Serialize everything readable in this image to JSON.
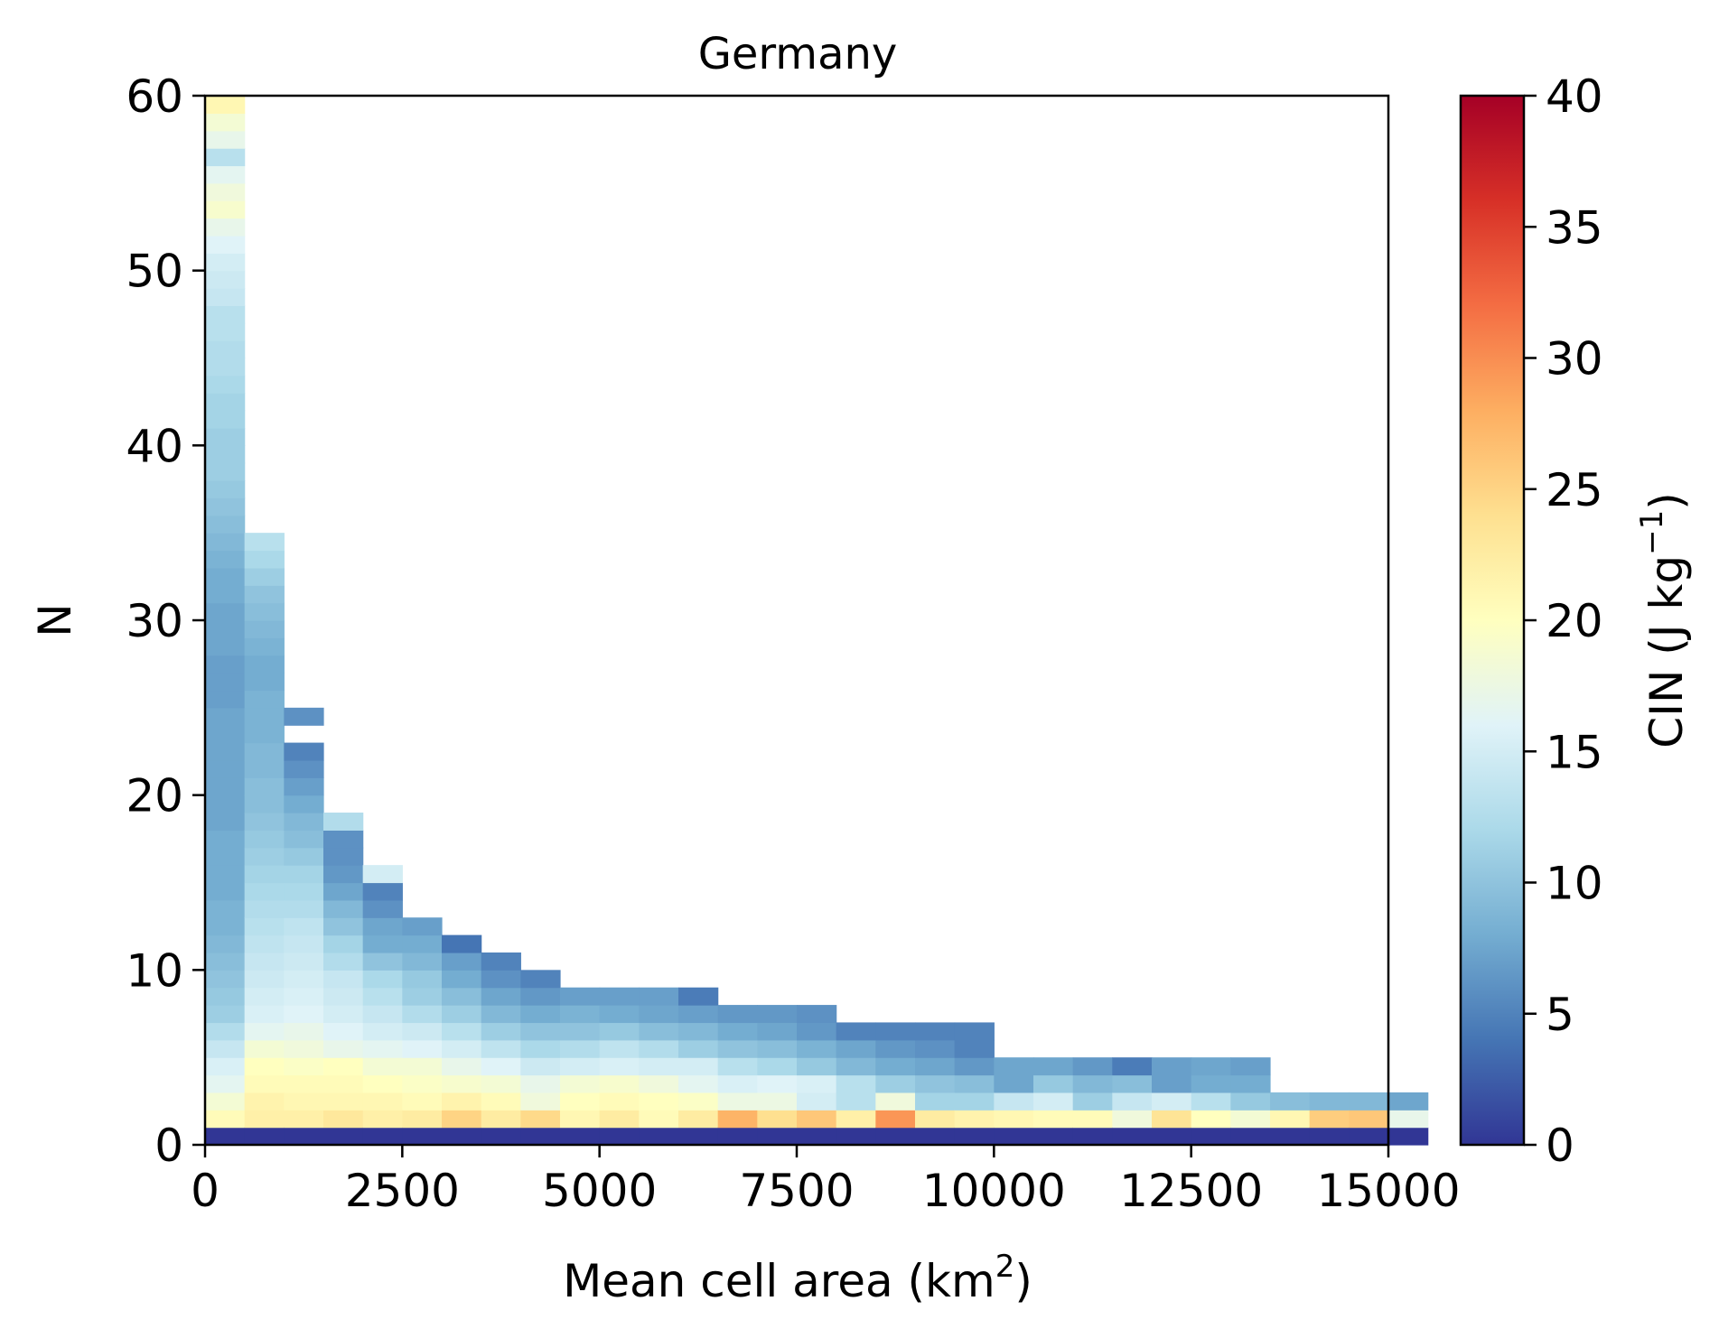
{
  "chart_data": {
    "type": "heatmap",
    "title": "Germany",
    "xlabel": {
      "text": "Mean cell area (km",
      "sup": "2",
      "suffix": ")"
    },
    "ylabel": "N",
    "xlim": [
      0,
      15000
    ],
    "ylim": [
      0,
      60
    ],
    "x_ticks": [
      "0",
      "2500",
      "5000",
      "7500",
      "10000",
      "12500",
      "15000"
    ],
    "y_ticks": [
      "0",
      "10",
      "20",
      "30",
      "40",
      "50",
      "60"
    ],
    "bin_width_x": 500,
    "bin_height_y": 1,
    "grid": false,
    "colorbar": {
      "label": {
        "text": "CIN (J kg",
        "sup": "−1",
        "suffix": ")"
      },
      "range": [
        0,
        40
      ],
      "ticks": [
        "0",
        "5",
        "10",
        "15",
        "20",
        "25",
        "30",
        "35",
        "40"
      ],
      "colormap": "RdYlBu_r",
      "colors": [
        "#313695",
        "#4575b4",
        "#74add1",
        "#abd9e9",
        "#e0f3f8",
        "#ffffbf",
        "#fee090",
        "#fdae61",
        "#f46d43",
        "#d73027",
        "#a50026"
      ]
    },
    "columns": [
      {
        "x_bin": 0,
        "values": [
          0,
          20.5,
          18.5,
          16.5,
          15.5,
          14,
          12.5,
          11,
          10.5,
          10,
          9.5,
          9,
          8.5,
          8.5,
          8,
          8,
          8,
          8,
          7.5,
          7.5,
          7.5,
          7.5,
          7.5,
          7.5,
          7.5,
          7,
          7,
          7,
          7.5,
          7.5,
          7.5,
          8,
          8,
          8.5,
          9,
          9.5,
          10,
          10.5,
          11,
          11,
          11,
          11.5,
          11.5,
          12,
          12.5,
          12.5,
          13,
          13,
          14,
          14.5,
          15,
          16,
          17,
          19,
          18,
          16.5,
          13,
          17,
          18.5,
          21
        ]
      },
      {
        "x_bin": 1,
        "values": [
          0,
          22,
          21.5,
          20.5,
          20,
          18.5,
          16.5,
          15.5,
          15,
          14.5,
          14,
          13.5,
          13,
          12.5,
          12,
          11.5,
          11,
          10.5,
          10,
          9.5,
          9.5,
          9,
          9,
          8.5,
          8.5,
          8.5,
          8,
          8,
          8.5,
          9,
          9.5,
          10,
          11,
          12,
          13
        ]
      },
      {
        "x_bin": 2,
        "values": [
          0,
          22,
          21,
          20.5,
          19.5,
          18,
          17,
          16,
          15.5,
          15,
          14.5,
          14,
          13.5,
          12.5,
          12,
          11.5,
          10.5,
          9.5,
          9,
          8,
          7,
          6,
          5,
          null,
          6
        ]
      },
      {
        "x_bin": 3,
        "values": [
          0,
          23,
          21,
          20.5,
          20,
          17,
          16,
          15,
          14.5,
          14,
          12.5,
          11.5,
          10,
          9,
          7.5,
          6.5,
          6,
          6,
          12.5
        ]
      },
      {
        "x_bin": 4,
        "values": [
          0,
          22,
          21,
          20,
          18.5,
          16.5,
          15,
          14,
          13,
          12,
          10,
          8,
          7.5,
          6,
          5,
          15
        ]
      },
      {
        "x_bin": 5,
        "values": [
          0,
          22.5,
          20.5,
          19.5,
          18.5,
          16,
          14.5,
          12.5,
          11,
          10.5,
          9,
          8,
          7
        ]
      },
      {
        "x_bin": 6,
        "values": [
          0,
          25,
          21.5,
          19,
          17,
          15,
          13,
          11,
          9.5,
          8,
          7,
          4
        ]
      },
      {
        "x_bin": 7,
        "values": [
          0,
          22.5,
          20.5,
          18.5,
          16,
          13.5,
          11,
          9,
          7.5,
          6,
          5
        ]
      },
      {
        "x_bin": 8,
        "values": [
          0,
          24.5,
          18,
          17,
          14.5,
          12,
          10,
          8,
          6.5,
          5
        ]
      },
      {
        "x_bin": 9,
        "values": [
          0,
          21,
          20,
          18.5,
          15,
          12.5,
          10,
          8.5,
          7
        ]
      },
      {
        "x_bin": 10,
        "values": [
          0,
          22.5,
          20.5,
          19,
          15.5,
          13.5,
          10.5,
          8,
          7
        ]
      },
      {
        "x_bin": 11,
        "values": [
          0,
          20.5,
          20,
          18,
          15,
          12.5,
          9.5,
          7.5,
          7
        ]
      },
      {
        "x_bin": 12,
        "values": [
          0,
          22.5,
          19.5,
          16.5,
          15,
          11,
          9,
          7,
          4.5
        ]
      },
      {
        "x_bin": 13,
        "values": [
          0,
          27.5,
          17.5,
          15.5,
          13,
          10,
          8,
          6.5
        ]
      },
      {
        "x_bin": 14,
        "values": [
          0,
          24,
          17.5,
          16,
          12,
          9.5,
          7.5,
          6.5
        ]
      },
      {
        "x_bin": 15,
        "values": [
          0,
          26,
          15,
          15.5,
          10.5,
          8.5,
          6.5,
          6
        ]
      },
      {
        "x_bin": 16,
        "values": [
          0,
          22,
          13,
          13,
          9,
          7.5,
          5
        ]
      },
      {
        "x_bin": 17,
        "values": [
          0,
          29.5,
          18,
          11,
          8,
          6.5,
          5
        ]
      },
      {
        "x_bin": 18,
        "values": [
          0,
          22.5,
          11.5,
          10,
          7.5,
          6,
          5
        ]
      },
      {
        "x_bin": 19,
        "values": [
          0,
          21.5,
          11.5,
          9.5,
          6.5,
          5,
          5
        ]
      },
      {
        "x_bin": 20,
        "values": [
          0,
          21,
          14,
          7.5,
          7.5
        ]
      },
      {
        "x_bin": 21,
        "values": [
          0,
          20.5,
          15,
          10.5,
          7.5
        ]
      },
      {
        "x_bin": 22,
        "values": [
          0,
          20.5,
          11,
          9,
          6.5
        ]
      },
      {
        "x_bin": 23,
        "values": [
          0,
          18,
          14,
          9.5,
          4.5
        ]
      },
      {
        "x_bin": 24,
        "values": [
          0,
          23.5,
          15,
          7,
          7
        ]
      },
      {
        "x_bin": 25,
        "values": [
          0,
          20,
          13,
          8,
          7.5
        ]
      },
      {
        "x_bin": 26,
        "values": [
          0,
          18.5,
          10.5,
          8,
          7
        ]
      },
      {
        "x_bin": 27,
        "values": [
          0,
          21,
          9.5
        ]
      },
      {
        "x_bin": 28,
        "values": [
          0,
          25.5,
          9
        ]
      },
      {
        "x_bin": 29,
        "values": [
          0,
          26,
          9
        ]
      },
      {
        "x_bin": 30,
        "values": [
          0,
          17,
          7.5
        ]
      }
    ]
  }
}
